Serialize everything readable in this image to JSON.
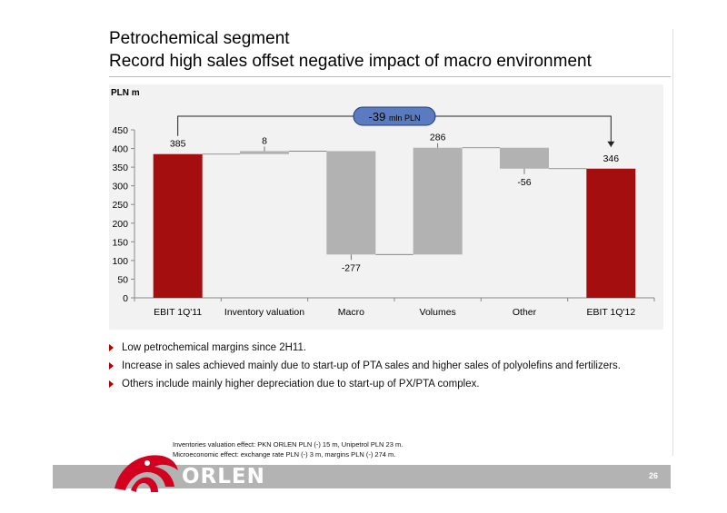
{
  "header": {
    "title_line1": "Petrochemical segment",
    "title_line2": "Record high sales offset negative impact of macro environment"
  },
  "chart_data": {
    "type": "bar",
    "subtype": "waterfall",
    "unit_label": "PLN m",
    "categories": [
      "EBIT 1Q'11",
      "Inventory valuation",
      "Macro",
      "Volumes",
      "Other",
      "EBIT 1Q'12"
    ],
    "values": [
      385,
      8,
      -277,
      286,
      -56,
      346
    ],
    "value_labels": [
      "385",
      "8",
      "-277",
      "286",
      "-56",
      "346"
    ],
    "bar_kinds": [
      "total",
      "delta",
      "delta",
      "delta",
      "delta",
      "total"
    ],
    "ylim": [
      0,
      450
    ],
    "yticks": [
      0,
      50,
      100,
      150,
      200,
      250,
      300,
      350,
      400,
      450
    ],
    "ytick_labels": [
      "0",
      "50",
      "100",
      "150",
      "200",
      "250",
      "300",
      "350",
      "400",
      "450"
    ],
    "callout": {
      "value": "-39",
      "unit": "mln PLN",
      "from": "EBIT 1Q'11",
      "to": "EBIT 1Q'12"
    },
    "colors": {
      "total": "#a50e0e",
      "delta": "#b2b2b2",
      "callout_fill": "#5b7bc0",
      "callout_border": "#1f3a7a"
    },
    "grid": false
  },
  "bullets": [
    "Low petrochemical margins since 2H11.",
    "Increase in sales achieved mainly due to start-up of PTA sales and higher sales of polyolefins and fertilizers.",
    "Others include mainly higher depreciation due to start-up of PX/PTA complex."
  ],
  "footnotes": [
    "Inventories valuation effect: PKN ORLEN PLN (-) 15 m, Unipetrol PLN 23 m.",
    "Microeconomic effect: exchange rate PLN (-) 3 m, margins PLN (-) 274 m."
  ],
  "footer": {
    "brand": "ORLEN",
    "page_number": "26",
    "logo_icon": "orlen-eagle-logo-icon",
    "brand_color": "#d4001f"
  }
}
